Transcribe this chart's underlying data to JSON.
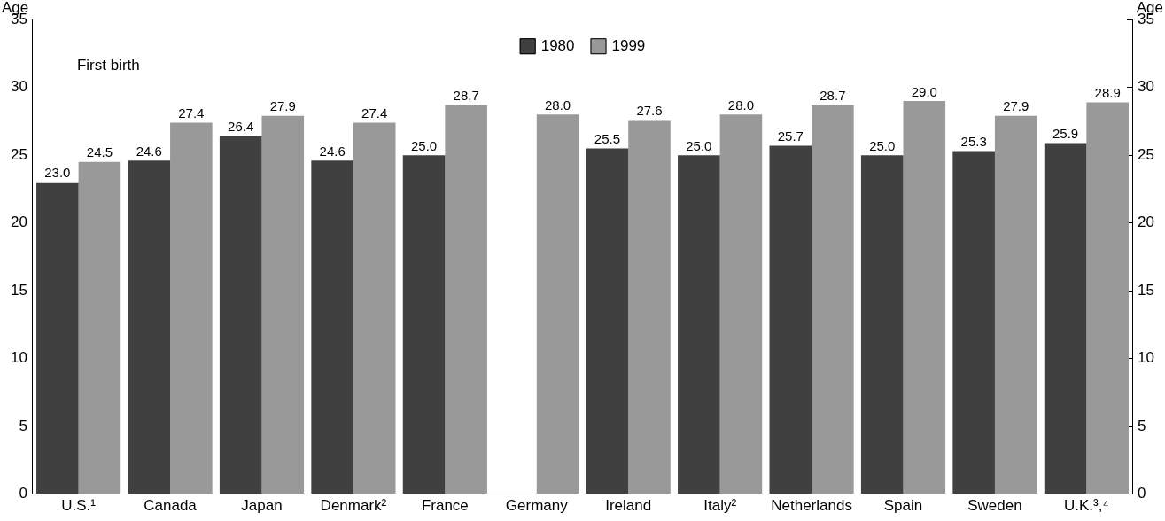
{
  "chart_data": {
    "type": "bar",
    "categories": [
      "U.S.¹",
      "Canada",
      "Japan",
      "Denmark²",
      "France",
      "Germany",
      "Ireland",
      "Italy²",
      "Netherlands",
      "Spain",
      "Sweden",
      "U.K.³,⁴"
    ],
    "series": [
      {
        "name": "1980",
        "color": "#404040",
        "values": [
          23.0,
          24.6,
          26.4,
          24.6,
          25.0,
          null,
          25.5,
          25.0,
          25.7,
          25.0,
          25.3,
          25.9
        ],
        "value_labels": [
          "23.0",
          "24.6",
          "26.4",
          "24.6",
          "25.0",
          null,
          "25.5",
          "25.0",
          "25.7",
          "25.0",
          "25.3",
          "25.9"
        ]
      },
      {
        "name": "1999",
        "color": "#999999",
        "values": [
          24.5,
          27.4,
          27.9,
          27.4,
          28.7,
          28.0,
          27.6,
          28.0,
          28.7,
          29.0,
          27.9,
          28.9
        ],
        "value_labels": [
          "24.5",
          "27.4",
          "27.9",
          "27.4",
          "28.7",
          "28.0",
          "27.6",
          "28.0",
          "28.7",
          "29.0",
          "27.9",
          "28.9"
        ]
      }
    ],
    "ylabel": "Age",
    "y2label": "Age",
    "ylim": [
      0,
      35
    ],
    "yticks": [
      0,
      5,
      10,
      15,
      20,
      25,
      30,
      35
    ],
    "y2lim": [
      0,
      35
    ],
    "y2ticks": [
      0,
      5,
      10,
      15,
      20,
      25,
      30,
      35
    ],
    "annotations": [
      "First birth"
    ],
    "legend": "top",
    "grid": false
  }
}
